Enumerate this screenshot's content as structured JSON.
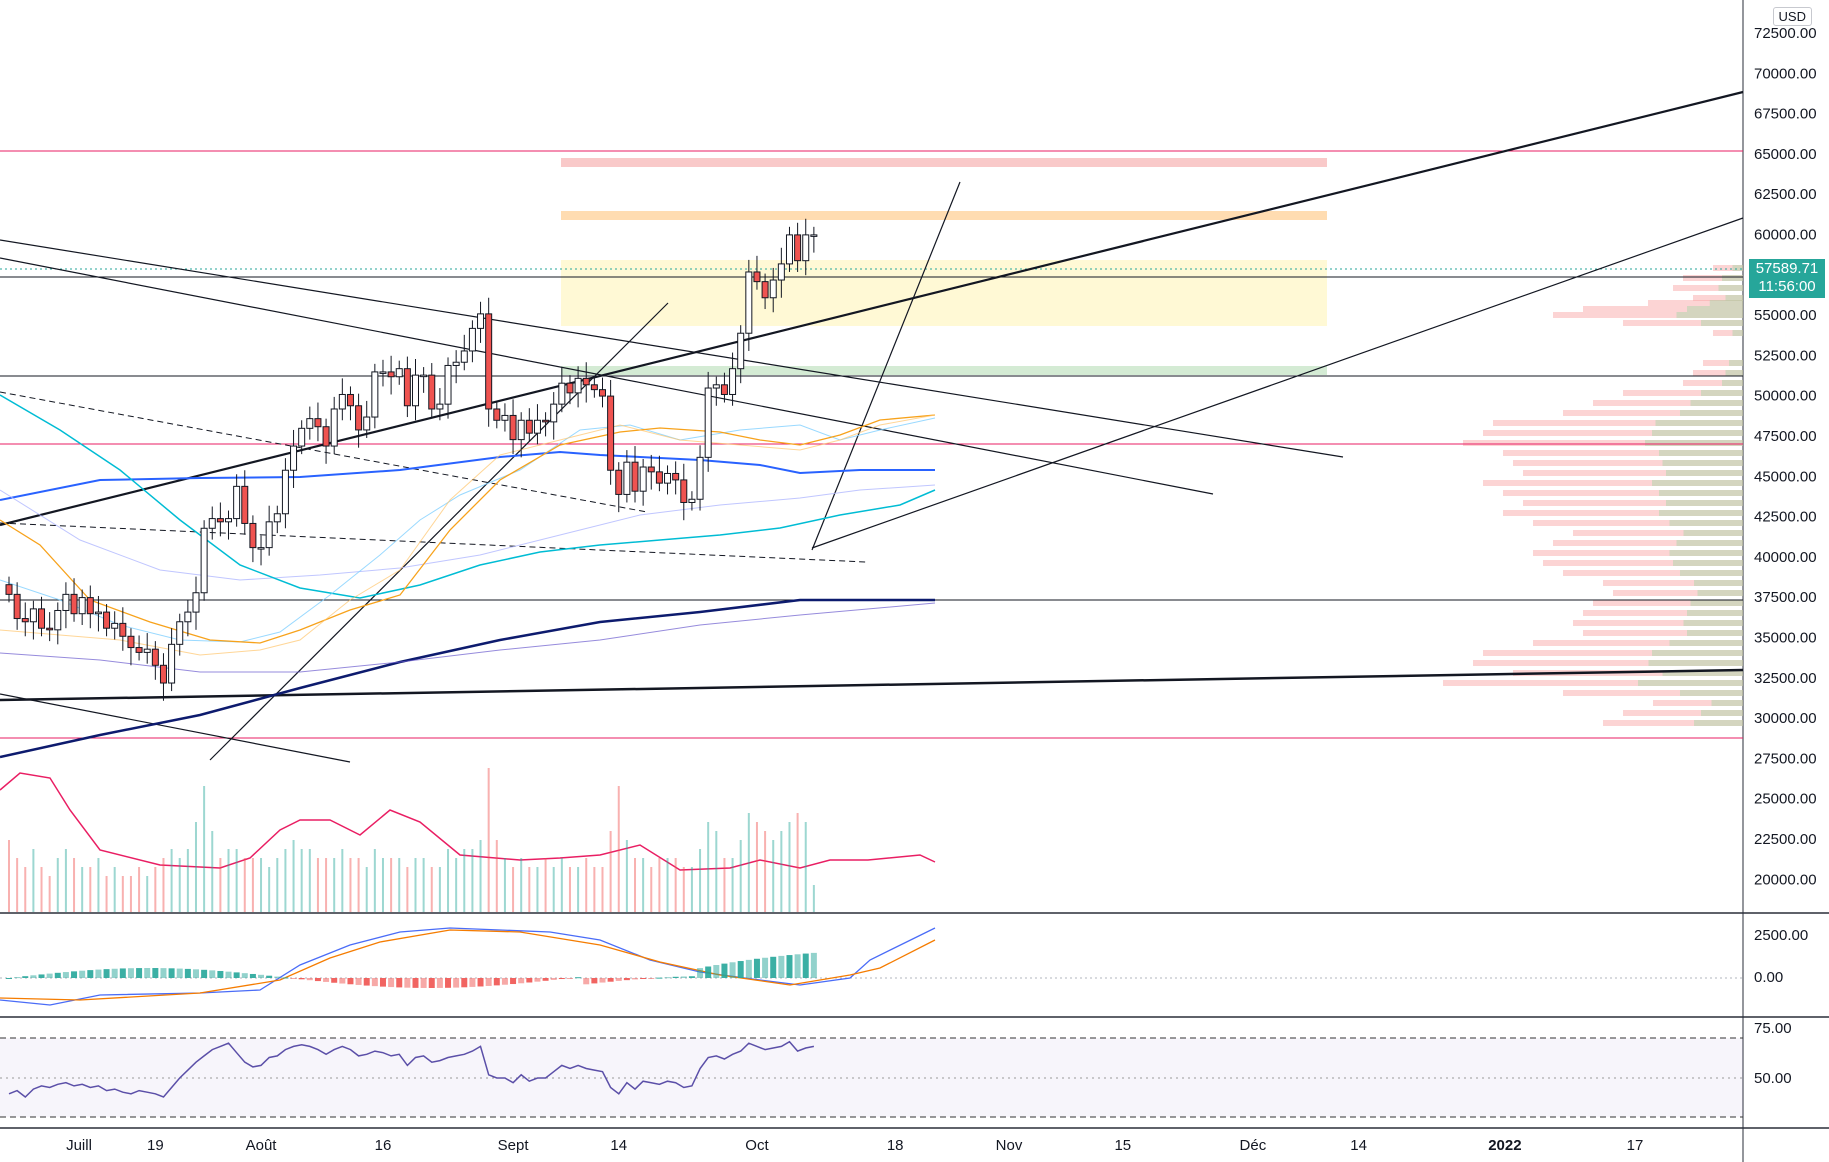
{
  "currency": "USD",
  "price_label": {
    "value": "57589.71",
    "countdown": "11:56:00",
    "bg": "#26a69a"
  },
  "colors": {
    "up": "#26a69a",
    "down": "#ef5350",
    "pink_line": "#e91e63",
    "volume_ma": "#e91e63",
    "ma_blue": "#2962ff",
    "ma_navy": "#0d1b6e",
    "ma_orange": "#f7a21b",
    "ma_cyan": "#00bcd4"
  },
  "chart_data": [
    {
      "type": "candlestick",
      "panel": "price",
      "y_ticks": [
        "72500.00",
        "70000.00",
        "67500.00",
        "65000.00",
        "62500.00",
        "60000.00",
        "57500.00",
        "55000.00",
        "52500.00",
        "50000.00",
        "47500.00",
        "45000.00",
        "42500.00",
        "40000.00",
        "37500.00",
        "35000.00",
        "32500.00",
        "30000.00",
        "27500.00",
        "25000.00",
        "22500.00",
        "20000.00"
      ],
      "x_ticks": [
        {
          "label": "Juill",
          "day": 0
        },
        {
          "label": "19",
          "day": 18
        },
        {
          "label": "Août",
          "day": 31
        },
        {
          "label": "16",
          "day": 46
        },
        {
          "label": "Sept",
          "day": 62
        },
        {
          "label": "14",
          "day": 75
        },
        {
          "label": "Oct",
          "day": 92
        },
        {
          "label": "18",
          "day": 109
        },
        {
          "label": "Nov",
          "day": 123
        },
        {
          "label": "15",
          "day": 137
        },
        {
          "label": "Déc",
          "day": 153
        },
        {
          "label": "14",
          "day": 166
        },
        {
          "label": "2022",
          "day": 184,
          "bold": true
        },
        {
          "label": "17",
          "day": 200
        }
      ],
      "close": [
        35300,
        33800,
        33600,
        34400,
        33200,
        33100,
        34300,
        35300,
        34100,
        35100,
        34100,
        34200,
        33200,
        33500,
        32700,
        32000,
        31700,
        31900,
        30900,
        29800,
        32200,
        33600,
        34200,
        35400,
        39400,
        40000,
        39800,
        40000,
        42000,
        39700,
        38200,
        38200,
        39800,
        40300,
        43000,
        44500,
        45600,
        46200,
        45700,
        44500,
        46800,
        47700,
        47000,
        45500,
        46300,
        49100,
        49100,
        48800,
        49300,
        47000,
        48900,
        48900,
        46800,
        47100,
        49500,
        49700,
        50400,
        51800,
        52700,
        46800,
        46100,
        46400,
        44900,
        46100,
        45300,
        46100,
        46000,
        47100,
        48400,
        47800,
        48700,
        48300,
        48000,
        47600,
        43000,
        41500,
        43500,
        41700,
        43200,
        42900,
        42200,
        42800,
        42400,
        41000,
        41200,
        43800,
        48100,
        48300,
        47700,
        49300,
        51500,
        55300,
        54700,
        53700,
        54800,
        55800,
        57600,
        56000,
        57600,
        57600
      ],
      "ohlc_extremes_note": "wicks drawn around body",
      "volume": [
        8,
        6,
        5,
        7,
        5,
        4,
        6,
        7,
        6,
        5,
        5,
        6,
        4,
        5,
        4,
        4,
        5,
        4,
        5,
        6,
        7,
        6,
        7,
        10,
        14,
        9,
        6,
        7,
        7,
        6,
        6,
        6,
        5,
        6,
        7,
        8,
        7,
        7,
        6,
        6,
        6,
        7,
        6,
        6,
        5,
        7,
        6,
        6,
        6,
        5,
        6,
        6,
        5,
        5,
        7,
        6,
        7,
        7,
        8,
        16,
        8,
        6,
        5,
        6,
        5,
        5,
        6,
        5,
        6,
        5,
        5,
        6,
        5,
        5,
        9,
        14,
        8,
        6,
        6,
        5,
        6,
        6,
        6,
        5,
        5,
        7,
        10,
        9,
        6,
        6,
        8,
        11,
        10,
        9,
        8,
        9,
        10,
        11,
        10,
        3
      ]
    },
    {
      "type": "histogram",
      "panel": "MACD",
      "y_ticks": [
        "2500.00",
        "0.00"
      ]
    },
    {
      "type": "line",
      "panel": "RSI",
      "y_ticks": [
        "75.00",
        "50.00"
      ],
      "rsi": [
        40,
        42,
        38,
        43,
        45,
        44,
        46,
        47,
        45,
        46,
        44,
        45,
        42,
        43,
        41,
        40,
        42,
        41,
        40,
        38,
        44,
        50,
        55,
        60,
        64,
        68,
        70,
        72,
        66,
        60,
        57,
        58,
        63,
        64,
        68,
        70,
        71,
        70,
        68,
        65,
        68,
        70,
        68,
        64,
        65,
        67,
        66,
        64,
        65,
        58,
        63,
        64,
        60,
        61,
        63,
        64,
        65,
        67,
        70,
        52,
        50,
        50,
        47,
        52,
        48,
        50,
        50,
        54,
        58,
        56,
        58,
        56,
        55,
        54,
        44,
        40,
        47,
        43,
        48,
        47,
        46,
        48,
        47,
        44,
        45,
        56,
        63,
        64,
        62,
        65,
        67,
        72,
        70,
        68,
        69,
        70,
        73,
        67,
        69,
        70
      ]
    }
  ]
}
